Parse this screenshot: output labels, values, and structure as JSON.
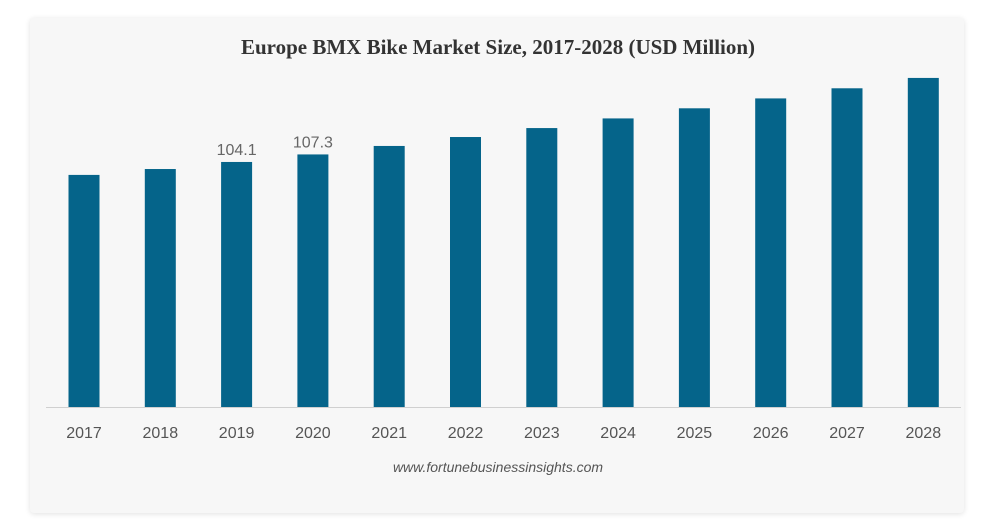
{
  "chart_data": {
    "type": "bar",
    "title": "Europe BMX Bike Market Size, 2017-2028 (USD Million)",
    "xlabel": "",
    "ylabel": "",
    "categories": [
      "2017",
      "2018",
      "2019",
      "2020",
      "2021",
      "2022",
      "2023",
      "2024",
      "2025",
      "2026",
      "2027",
      "2028"
    ],
    "values": [
      98.6,
      101.1,
      104.1,
      107.3,
      110.9,
      114.7,
      118.5,
      122.6,
      126.9,
      131.1,
      135.4,
      139.8
    ],
    "data_labels": {
      "2019": "104.1",
      "2020": "107.3"
    },
    "ylim": [
      0,
      143
    ],
    "grid": false,
    "legend": "none",
    "bar_color": "#05648a",
    "source": "www.fortunebusinessinsights.com"
  }
}
